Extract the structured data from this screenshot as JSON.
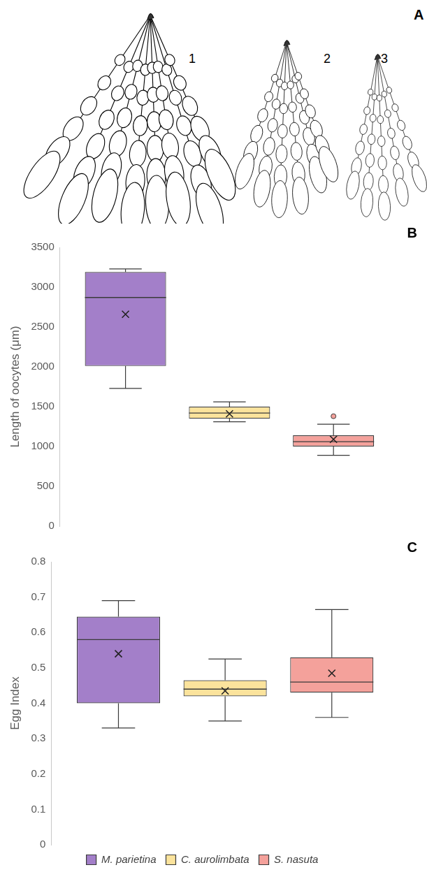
{
  "figure": {
    "panel": "A",
    "labels": [
      "1",
      "2",
      "3"
    ]
  },
  "chart_data": [
    {
      "type": "box",
      "panel": "B",
      "ylabel": "Length of oocytes (μm)",
      "ylim": [
        0,
        3500
      ],
      "yticks": [
        0,
        500,
        1000,
        1500,
        2000,
        2500,
        3000,
        3500
      ],
      "grid": false,
      "series": [
        {
          "name": "M. parietina",
          "color": "#a37fc9",
          "min": 1730,
          "q1": 2010,
          "median": 2870,
          "q3": 3190,
          "max": 3230,
          "mean": 2660,
          "outliers": []
        },
        {
          "name": "C. aurolimbata",
          "color": "#fbe39c",
          "min": 1310,
          "q1": 1350,
          "median": 1420,
          "q3": 1500,
          "max": 1560,
          "mean": 1410,
          "outliers": []
        },
        {
          "name": "S. nasuta",
          "color": "#f4a19b",
          "min": 890,
          "q1": 1000,
          "median": 1060,
          "q3": 1140,
          "max": 1280,
          "mean": 1090,
          "outliers": [
            1380
          ]
        }
      ]
    },
    {
      "type": "box",
      "panel": "C",
      "ylabel": "Egg Index",
      "ylim": [
        0,
        0.8
      ],
      "yticks": [
        0,
        0.1,
        0.2,
        0.3,
        0.4,
        0.5,
        0.6,
        0.7,
        0.8
      ],
      "grid": false,
      "legend": "bottom",
      "series": [
        {
          "name": "M. parietina",
          "color": "#a37fc9",
          "min": 0.33,
          "q1": 0.4,
          "median": 0.58,
          "q3": 0.645,
          "max": 0.69,
          "mean": 0.54,
          "outliers": []
        },
        {
          "name": "C. aurolimbata",
          "color": "#fbe39c",
          "min": 0.35,
          "q1": 0.42,
          "median": 0.44,
          "q3": 0.465,
          "max": 0.525,
          "mean": 0.435,
          "outliers": []
        },
        {
          "name": "S. nasuta",
          "color": "#f4a19b",
          "min": 0.36,
          "q1": 0.43,
          "median": 0.46,
          "q3": 0.53,
          "max": 0.665,
          "mean": 0.485,
          "outliers": []
        }
      ]
    }
  ]
}
